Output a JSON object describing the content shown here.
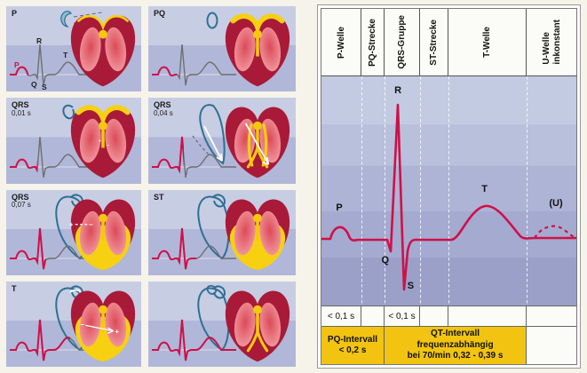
{
  "colors": {
    "ecg_red": "#cf1049",
    "trace_gray": "#6f6f6f",
    "heart_dark_red": "#a81a38",
    "conduction_yellow": "#f7d011",
    "loop_blue": "#2e7093",
    "interval_yellow": "#f2c411",
    "panel_lavender_top": "#c7cde3",
    "panel_lavender_bottom": "#b1b7d8"
  },
  "left_panels": [
    {
      "label": "P",
      "duration": "",
      "heart_variant": "p",
      "loop_variant": "crescent",
      "ecg_red_until": 23,
      "trace_letters": {
        "p": "P",
        "q": "Q",
        "r": "R",
        "s": "S",
        "t": "T"
      }
    },
    {
      "label": "PQ",
      "duration": "",
      "heart_variant": "pq",
      "loop_variant": "oval",
      "ecg_red_until": 30
    },
    {
      "label": "QRS",
      "duration": "0,01 s",
      "heart_variant": "q01",
      "loop_variant": "loopStart",
      "ecg_red_until": 33
    },
    {
      "label": "QRS",
      "duration": "0,04 s",
      "heart_variant": "q04",
      "loop_variant": "loopMid",
      "ecg_red_until": 38
    },
    {
      "label": "QRS",
      "duration": "0,07 s",
      "heart_variant": "q07",
      "loop_variant": "loopFull",
      "ecg_red_until": 43
    },
    {
      "label": "ST",
      "duration": "",
      "heart_variant": "st",
      "loop_variant": "loopFull",
      "ecg_red_until": 52
    },
    {
      "label": "T",
      "duration": "",
      "heart_variant": "t",
      "loop_variant": "loopT",
      "ecg_red_until": 70
    },
    {
      "label": "",
      "duration": "",
      "heart_variant": "rest",
      "loop_variant": "loopRest",
      "ecg_red_until": 98
    }
  ],
  "ecg_chart": {
    "columns": [
      {
        "label": "P-Welle",
        "label2": "",
        "duration": "< 0,1 s"
      },
      {
        "label": "PQ-Strecke",
        "label2": "",
        "duration": ""
      },
      {
        "label": "QRS-Gruppe",
        "label2": "",
        "duration": "< 0,1 s"
      },
      {
        "label": "ST-Strecke",
        "label2": "",
        "duration": ""
      },
      {
        "label": "T-Welle",
        "label2": "",
        "duration": ""
      },
      {
        "label": "U-Welle",
        "label2": "inkonstant",
        "duration": ""
      }
    ],
    "wave_labels": {
      "p": "P",
      "q": "Q",
      "r": "R",
      "s": "S",
      "t": "T",
      "u": "(U)"
    },
    "intervals": [
      {
        "line1": "PQ-Intervall",
        "line2": "< 0,2 s",
        "line3": ""
      },
      {
        "line1": "QT-Intervall",
        "line2": "frequenzabhängig",
        "line3": "bei 70/min  0,32 - 0,39 s"
      }
    ]
  }
}
